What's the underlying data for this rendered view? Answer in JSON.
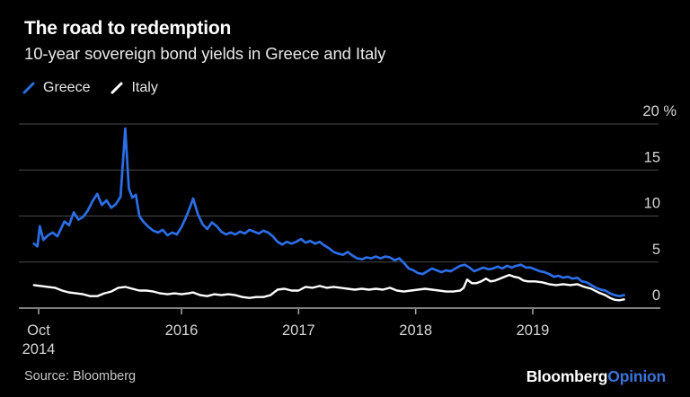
{
  "header": {
    "title": "The road to redemption",
    "subtitle": "10-year sovereign bond yields in Greece and Italy"
  },
  "legend": [
    {
      "label": "Greece",
      "color": "#2c6ee8"
    },
    {
      "label": "Italy",
      "color": "#ffffff"
    }
  ],
  "footer": {
    "source": "Source: Bloomberg",
    "brand": "Bloomberg",
    "brand_suffix": "Opinion"
  },
  "colors": {
    "background": "#000000",
    "grid": "#4a4a4a",
    "axis": "#a8a8a8",
    "tick_label": "#d6d6d6",
    "greece_blue": "#2c6ee8",
    "italy_white": "#ffffff",
    "opinion_blue": "#3a72d9"
  },
  "chart_data": {
    "type": "line",
    "title": "The road to redemption",
    "subtitle": "10-year sovereign bond yields in Greece and Italy",
    "unit": "%",
    "ylim": [
      0,
      20
    ],
    "xlim": [
      2014.74,
      2019.78
    ],
    "grid": true,
    "legend_position": "top-left",
    "y_ticks": [
      {
        "value": 20,
        "label": "20 %"
      },
      {
        "value": 15,
        "label": "15"
      },
      {
        "value": 10,
        "label": "10"
      },
      {
        "value": 5,
        "label": "5"
      },
      {
        "value": 0,
        "label": "0"
      }
    ],
    "x_ticks": [
      {
        "year": 2014.78,
        "label": "Oct 2014",
        "label_lines": [
          "Oct",
          "2014"
        ]
      },
      {
        "year": 2016,
        "label": "2016",
        "label_lines": [
          "2016"
        ]
      },
      {
        "year": 2017,
        "label": "2017",
        "label_lines": [
          "2017"
        ]
      },
      {
        "year": 2018,
        "label": "2018",
        "label_lines": [
          "2018"
        ]
      },
      {
        "year": 2019,
        "label": "2019",
        "label_lines": [
          "2019"
        ]
      }
    ],
    "series": [
      {
        "name": "Greece",
        "color": "#2c6ee8",
        "points": [
          [
            2014.74,
            7.0
          ],
          [
            2014.77,
            6.7
          ],
          [
            2014.79,
            8.9
          ],
          [
            2014.82,
            7.4
          ],
          [
            2014.86,
            7.9
          ],
          [
            2014.9,
            8.2
          ],
          [
            2014.94,
            7.8
          ],
          [
            2015.0,
            9.4
          ],
          [
            2015.04,
            9.0
          ],
          [
            2015.08,
            10.4
          ],
          [
            2015.12,
            9.6
          ],
          [
            2015.16,
            9.9
          ],
          [
            2015.2,
            10.6
          ],
          [
            2015.24,
            11.6
          ],
          [
            2015.28,
            12.4
          ],
          [
            2015.32,
            11.2
          ],
          [
            2015.36,
            11.7
          ],
          [
            2015.4,
            10.9
          ],
          [
            2015.44,
            11.3
          ],
          [
            2015.48,
            12.1
          ],
          [
            2015.52,
            19.5
          ],
          [
            2015.55,
            13.0
          ],
          [
            2015.58,
            12.0
          ],
          [
            2015.61,
            12.3
          ],
          [
            2015.64,
            10.0
          ],
          [
            2015.68,
            9.3
          ],
          [
            2015.72,
            8.8
          ],
          [
            2015.76,
            8.4
          ],
          [
            2015.8,
            8.2
          ],
          [
            2015.84,
            8.5
          ],
          [
            2015.88,
            7.9
          ],
          [
            2015.92,
            8.2
          ],
          [
            2015.96,
            8.0
          ],
          [
            2016.0,
            8.8
          ],
          [
            2016.04,
            9.9
          ],
          [
            2016.08,
            11.2
          ],
          [
            2016.1,
            11.9
          ],
          [
            2016.14,
            10.2
          ],
          [
            2016.18,
            9.1
          ],
          [
            2016.22,
            8.6
          ],
          [
            2016.26,
            9.3
          ],
          [
            2016.3,
            8.9
          ],
          [
            2016.34,
            8.3
          ],
          [
            2016.38,
            8.0
          ],
          [
            2016.42,
            8.2
          ],
          [
            2016.46,
            8.0
          ],
          [
            2016.5,
            8.3
          ],
          [
            2016.54,
            8.1
          ],
          [
            2016.58,
            8.5
          ],
          [
            2016.62,
            8.3
          ],
          [
            2016.66,
            8.1
          ],
          [
            2016.7,
            8.4
          ],
          [
            2016.74,
            8.2
          ],
          [
            2016.78,
            7.8
          ],
          [
            2016.82,
            7.2
          ],
          [
            2016.86,
            6.9
          ],
          [
            2016.9,
            7.2
          ],
          [
            2016.94,
            7.0
          ],
          [
            2016.98,
            7.2
          ],
          [
            2017.02,
            7.5
          ],
          [
            2017.06,
            7.1
          ],
          [
            2017.1,
            7.3
          ],
          [
            2017.14,
            7.0
          ],
          [
            2017.18,
            7.2
          ],
          [
            2017.22,
            6.8
          ],
          [
            2017.26,
            6.5
          ],
          [
            2017.3,
            6.1
          ],
          [
            2017.34,
            5.9
          ],
          [
            2017.38,
            5.8
          ],
          [
            2017.42,
            6.1
          ],
          [
            2017.46,
            5.7
          ],
          [
            2017.5,
            5.4
          ],
          [
            2017.54,
            5.3
          ],
          [
            2017.58,
            5.5
          ],
          [
            2017.62,
            5.4
          ],
          [
            2017.66,
            5.6
          ],
          [
            2017.7,
            5.4
          ],
          [
            2017.74,
            5.6
          ],
          [
            2017.78,
            5.5
          ],
          [
            2017.82,
            5.2
          ],
          [
            2017.86,
            5.4
          ],
          [
            2017.9,
            4.9
          ],
          [
            2017.94,
            4.3
          ],
          [
            2017.98,
            4.1
          ],
          [
            2018.02,
            3.8
          ],
          [
            2018.06,
            3.7
          ],
          [
            2018.1,
            4.0
          ],
          [
            2018.14,
            4.3
          ],
          [
            2018.18,
            4.1
          ],
          [
            2018.22,
            3.9
          ],
          [
            2018.26,
            4.1
          ],
          [
            2018.3,
            4.0
          ],
          [
            2018.34,
            4.3
          ],
          [
            2018.38,
            4.6
          ],
          [
            2018.42,
            4.7
          ],
          [
            2018.46,
            4.4
          ],
          [
            2018.5,
            4.0
          ],
          [
            2018.54,
            4.2
          ],
          [
            2018.58,
            4.4
          ],
          [
            2018.62,
            4.2
          ],
          [
            2018.66,
            4.3
          ],
          [
            2018.7,
            4.5
          ],
          [
            2018.74,
            4.3
          ],
          [
            2018.78,
            4.6
          ],
          [
            2018.82,
            4.4
          ],
          [
            2018.86,
            4.6
          ],
          [
            2018.9,
            4.7
          ],
          [
            2018.94,
            4.4
          ],
          [
            2018.98,
            4.4
          ],
          [
            2019.02,
            4.2
          ],
          [
            2019.06,
            4.0
          ],
          [
            2019.1,
            3.9
          ],
          [
            2019.14,
            3.7
          ],
          [
            2019.18,
            3.4
          ],
          [
            2019.22,
            3.5
          ],
          [
            2019.26,
            3.3
          ],
          [
            2019.3,
            3.4
          ],
          [
            2019.34,
            3.2
          ],
          [
            2019.38,
            3.3
          ],
          [
            2019.42,
            2.9
          ],
          [
            2019.46,
            2.8
          ],
          [
            2019.5,
            2.5
          ],
          [
            2019.54,
            2.2
          ],
          [
            2019.58,
            2.0
          ],
          [
            2019.62,
            1.9
          ],
          [
            2019.66,
            1.6
          ],
          [
            2019.7,
            1.4
          ],
          [
            2019.74,
            1.3
          ],
          [
            2019.78,
            1.4
          ]
        ]
      },
      {
        "name": "Italy",
        "color": "#ffffff",
        "points": [
          [
            2014.74,
            2.5
          ],
          [
            2014.8,
            2.4
          ],
          [
            2014.86,
            2.3
          ],
          [
            2014.92,
            2.2
          ],
          [
            2014.98,
            1.9
          ],
          [
            2015.04,
            1.7
          ],
          [
            2015.1,
            1.6
          ],
          [
            2015.16,
            1.5
          ],
          [
            2015.22,
            1.3
          ],
          [
            2015.28,
            1.3
          ],
          [
            2015.34,
            1.6
          ],
          [
            2015.4,
            1.8
          ],
          [
            2015.46,
            2.2
          ],
          [
            2015.52,
            2.3
          ],
          [
            2015.58,
            2.1
          ],
          [
            2015.64,
            1.9
          ],
          [
            2015.7,
            1.9
          ],
          [
            2015.76,
            1.8
          ],
          [
            2015.82,
            1.6
          ],
          [
            2015.88,
            1.5
          ],
          [
            2015.94,
            1.6
          ],
          [
            2016.0,
            1.5
          ],
          [
            2016.06,
            1.6
          ],
          [
            2016.1,
            1.7
          ],
          [
            2016.16,
            1.4
          ],
          [
            2016.22,
            1.3
          ],
          [
            2016.28,
            1.5
          ],
          [
            2016.34,
            1.4
          ],
          [
            2016.4,
            1.5
          ],
          [
            2016.46,
            1.4
          ],
          [
            2016.52,
            1.2
          ],
          [
            2016.58,
            1.1
          ],
          [
            2016.64,
            1.2
          ],
          [
            2016.7,
            1.2
          ],
          [
            2016.76,
            1.4
          ],
          [
            2016.82,
            2.0
          ],
          [
            2016.88,
            2.1
          ],
          [
            2016.94,
            1.9
          ],
          [
            2017.0,
            1.9
          ],
          [
            2017.06,
            2.3
          ],
          [
            2017.12,
            2.2
          ],
          [
            2017.18,
            2.4
          ],
          [
            2017.24,
            2.2
          ],
          [
            2017.3,
            2.3
          ],
          [
            2017.36,
            2.2
          ],
          [
            2017.42,
            2.1
          ],
          [
            2017.48,
            2.0
          ],
          [
            2017.54,
            2.1
          ],
          [
            2017.6,
            2.0
          ],
          [
            2017.66,
            2.1
          ],
          [
            2017.72,
            2.0
          ],
          [
            2017.78,
            2.2
          ],
          [
            2017.84,
            1.9
          ],
          [
            2017.9,
            1.8
          ],
          [
            2017.96,
            1.9
          ],
          [
            2018.02,
            2.0
          ],
          [
            2018.08,
            2.1
          ],
          [
            2018.14,
            2.0
          ],
          [
            2018.2,
            1.9
          ],
          [
            2018.26,
            1.8
          ],
          [
            2018.32,
            1.8
          ],
          [
            2018.38,
            1.9
          ],
          [
            2018.41,
            2.2
          ],
          [
            2018.44,
            3.1
          ],
          [
            2018.48,
            2.7
          ],
          [
            2018.52,
            2.7
          ],
          [
            2018.56,
            2.9
          ],
          [
            2018.6,
            3.2
          ],
          [
            2018.64,
            2.9
          ],
          [
            2018.68,
            3.0
          ],
          [
            2018.72,
            3.2
          ],
          [
            2018.76,
            3.4
          ],
          [
            2018.8,
            3.6
          ],
          [
            2018.84,
            3.4
          ],
          [
            2018.88,
            3.3
          ],
          [
            2018.92,
            3.0
          ],
          [
            2018.96,
            2.9
          ],
          [
            2019.02,
            2.9
          ],
          [
            2019.08,
            2.8
          ],
          [
            2019.14,
            2.6
          ],
          [
            2019.2,
            2.5
          ],
          [
            2019.26,
            2.6
          ],
          [
            2019.32,
            2.5
          ],
          [
            2019.38,
            2.6
          ],
          [
            2019.44,
            2.3
          ],
          [
            2019.5,
            2.1
          ],
          [
            2019.56,
            1.7
          ],
          [
            2019.62,
            1.4
          ],
          [
            2019.66,
            1.1
          ],
          [
            2019.7,
            0.9
          ],
          [
            2019.74,
            0.85
          ],
          [
            2019.78,
            0.95
          ]
        ]
      }
    ]
  }
}
